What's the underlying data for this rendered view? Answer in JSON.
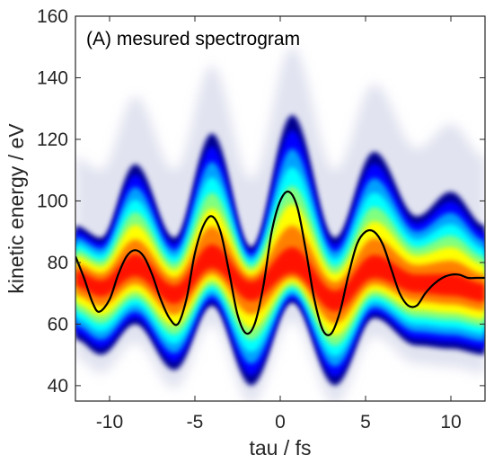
{
  "chart_data": {
    "type": "heatmap",
    "title": "(A) mesured spectrogram",
    "xlabel": "tau / fs",
    "ylabel": "kinetic energy / eV",
    "xlim": [
      -12,
      12
    ],
    "ylim": [
      35,
      160
    ],
    "xticks": [
      -10,
      -5,
      0,
      5,
      10
    ],
    "yticks": [
      40,
      60,
      80,
      100,
      120,
      140,
      160
    ],
    "grid": false,
    "colormap": "jet",
    "colormap_stops": [
      "#ffffff",
      "#c8cce4",
      "#00008f",
      "#0000ff",
      "#00a0ff",
      "#00ffff",
      "#80ff80",
      "#ffff00",
      "#ff8000",
      "#ff0000"
    ],
    "spectrogram_envelope": {
      "description_values": "per-tau band of detected kinetic energies",
      "tau": [
        -12,
        -10.5,
        -8.5,
        -6.2,
        -4,
        -1.7,
        0.7,
        3.2,
        5.5,
        8,
        10,
        12
      ],
      "upper_edge_eV": [
        92,
        88,
        112,
        88,
        122,
        85,
        128,
        88,
        116,
        95,
        103,
        92
      ],
      "lower_edge_eV": [
        55,
        50,
        60,
        45,
        66,
        40,
        67,
        40,
        62,
        53,
        52,
        50
      ],
      "peak_eV": [
        75,
        72,
        78,
        70,
        80,
        72,
        78,
        68,
        77,
        73,
        72,
        70
      ]
    },
    "series": [
      {
        "type": "line",
        "color": "#000000",
        "x": [
          -12,
          -11.5,
          -11,
          -10.6,
          -10,
          -9.5,
          -9,
          -8.5,
          -8,
          -7.5,
          -7,
          -6.5,
          -6,
          -5.5,
          -5,
          -4.5,
          -4,
          -3.5,
          -3,
          -2.5,
          -2,
          -1.5,
          -1,
          -0.5,
          0,
          0.5,
          1,
          1.5,
          2,
          2.5,
          3,
          3.5,
          4,
          4.5,
          5,
          5.5,
          6,
          6.5,
          7,
          7.5,
          8,
          8.5,
          9,
          9.5,
          10,
          10.5,
          11,
          11.5,
          12
        ],
        "y": [
          82,
          75,
          67,
          64,
          68,
          76,
          82,
          84,
          82,
          76,
          68,
          62,
          60,
          68,
          83,
          92,
          95,
          90,
          77,
          63,
          57,
          60,
          72,
          90,
          100,
          103,
          98,
          84,
          68,
          58,
          57,
          64,
          76,
          86,
          90,
          90,
          86,
          78,
          70,
          66,
          66,
          70,
          73,
          75,
          76,
          76,
          75,
          75,
          75
        ]
      }
    ]
  }
}
